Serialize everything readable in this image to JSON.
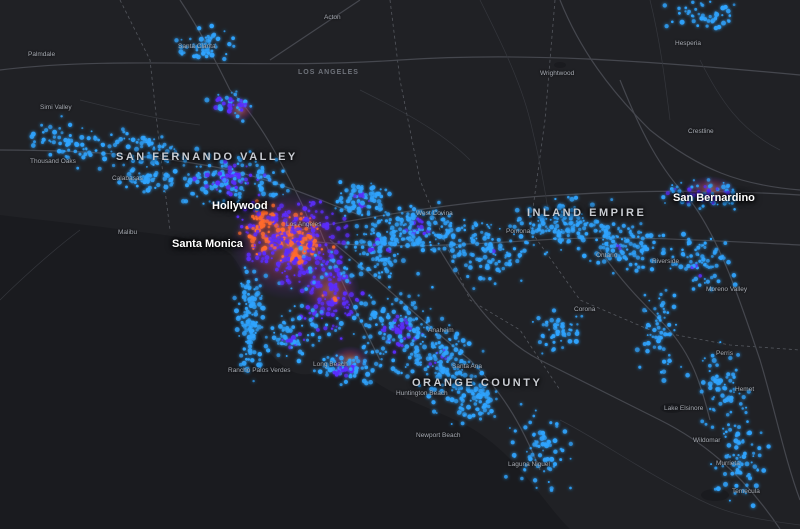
{
  "map": {
    "theme": "dark",
    "colors": {
      "land": "#2a2b30",
      "ocean": "#1a1b1f",
      "roads": "#3f4147",
      "points_low": "#2fa4ff",
      "points_mid": "#5b2cff",
      "points_high": "#ff6a2a"
    },
    "region_labels": {
      "san_fernando_valley": "SAN FERNANDO VALLEY",
      "inland_empire": "INLAND EMPIRE",
      "orange_county": "ORANGE COUNTY",
      "los_angeles_county": "LOS ANGELES"
    },
    "city_labels": {
      "hollywood": "Hollywood",
      "santa_monica": "Santa Monica",
      "san_bernardino": "San Bernardino"
    },
    "small_labels": {
      "palmdale": "Palmdale",
      "acton": "Acton",
      "santa_clarita": "Santa Clarita",
      "wrightwood": "Wrightwood",
      "hesperia": "Hesperia",
      "crestline": "Crestline",
      "calabasas": "Calabasas",
      "malibu": "Malibu",
      "los_angeles": "Los Angeles",
      "west_covina": "West Covina",
      "pomona": "Pomona",
      "ontario": "Ontario",
      "riverside": "Riverside",
      "moreno_valley": "Moreno Valley",
      "corona": "Corona",
      "anaheim": "Anaheim",
      "santa_ana": "Santa Ana",
      "long_beach": "Long Beach",
      "rancho_palos_verdes": "Rancho Palos Verdes",
      "huntington_beach": "Huntington Beach",
      "newport_beach": "Newport Beach",
      "laguna_niguel": "Laguna Niguel",
      "lake_elsinore": "Lake Elsinore",
      "perris": "Perris",
      "hemet": "Hemet",
      "murrieta": "Murrieta",
      "temecula": "Temecula",
      "wildomar": "Wildomar",
      "thousand_oaks": "Thousand Oaks",
      "simi_valley": "Simi Valley"
    }
  }
}
